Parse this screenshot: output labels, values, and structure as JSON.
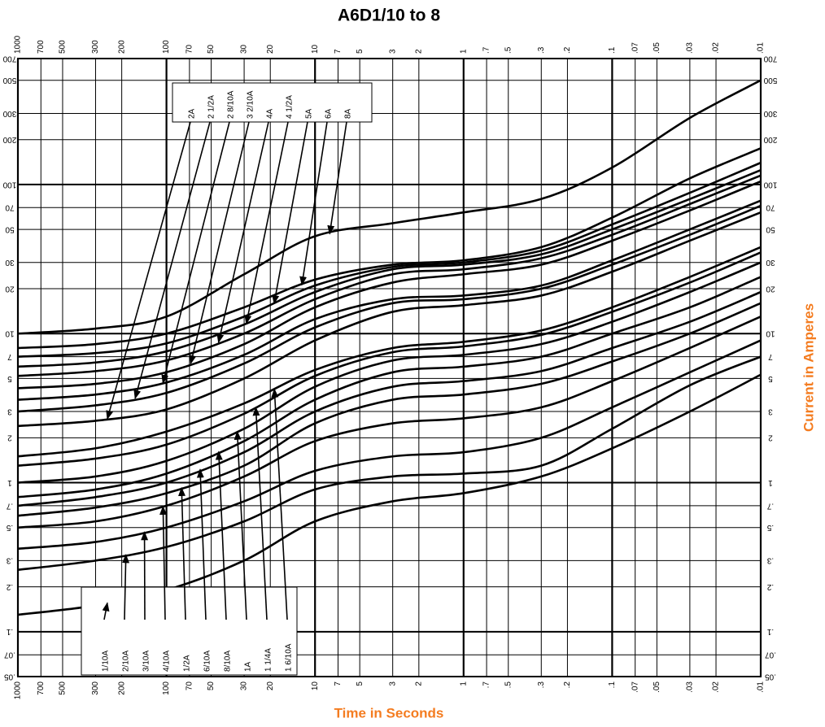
{
  "chart_data": {
    "type": "line",
    "title": "A6D1/10 to 8",
    "x_label": "Time in Seconds",
    "y_label": "Current in Amperes",
    "log_x": true,
    "log_y": true,
    "x_reversed": true,
    "grid": true,
    "color": "#000000",
    "x": [
      1000,
      300,
      100,
      30,
      10,
      3,
      1,
      0.3,
      0.1,
      0.03,
      0.01
    ],
    "xlim": [
      1000,
      0.01
    ],
    "xticks": [
      1000,
      700,
      500,
      300,
      200,
      100,
      70,
      50,
      30,
      20,
      10,
      7,
      5,
      3,
      2,
      1,
      {
        "value": 0.7,
        "label": ".7"
      },
      {
        "value": 0.5,
        "label": ".5"
      },
      {
        "value": 0.3,
        "label": ".3"
      },
      {
        "value": 0.2,
        "label": ".2"
      },
      {
        "value": 0.1,
        "label": ".1"
      },
      {
        "value": 0.07,
        "label": ".07"
      },
      {
        "value": 0.05,
        "label": ".05"
      },
      {
        "value": 0.03,
        "label": ".03"
      },
      {
        "value": 0.02,
        "label": ".02"
      },
      {
        "value": 0.01,
        "label": ".01"
      }
    ],
    "ylim": [
      0.05,
      700
    ],
    "yticks": [
      {
        "value": 0.05,
        "label": ".05"
      },
      {
        "value": 0.07,
        "label": ".07"
      },
      {
        "value": 0.1,
        "label": ".1"
      },
      {
        "value": 0.2,
        "label": ".2"
      },
      {
        "value": 0.3,
        "label": ".3"
      },
      {
        "value": 0.5,
        "label": ".5"
      },
      {
        "value": 0.7,
        "label": ".7"
      },
      1,
      2,
      3,
      5,
      7,
      10,
      20,
      30,
      50,
      70,
      100,
      200,
      300,
      500,
      700
    ],
    "series": [
      {
        "name": "1/10A",
        "values": [
          0.13,
          0.15,
          0.19,
          0.3,
          0.55,
          0.75,
          0.85,
          1.1,
          1.7,
          3,
          5.3
        ]
      },
      {
        "name": "2/10A",
        "values": [
          0.26,
          0.3,
          0.37,
          0.55,
          0.9,
          1.1,
          1.15,
          1.3,
          2.3,
          4.5,
          7
        ]
      },
      {
        "name": "3/10A",
        "values": [
          0.36,
          0.4,
          0.5,
          0.75,
          1.2,
          1.5,
          1.6,
          2,
          3.2,
          5.5,
          9
        ]
      },
      {
        "name": "4/10A",
        "values": [
          0.5,
          0.55,
          0.7,
          1.1,
          1.9,
          2.5,
          2.7,
          3.2,
          4.8,
          8,
          13
        ]
      },
      {
        "name": "1/2A",
        "values": [
          0.6,
          0.68,
          0.85,
          1.3,
          2.5,
          3.6,
          3.9,
          4.6,
          6.5,
          10,
          16
        ]
      },
      {
        "name": "6/10A",
        "values": [
          0.7,
          0.8,
          1.0,
          1.6,
          3.0,
          4.4,
          4.8,
          5.6,
          8,
          12,
          19
        ]
      },
      {
        "name": "8/10A",
        "values": [
          0.8,
          0.9,
          1.15,
          1.9,
          3.6,
          5.5,
          6,
          7,
          10,
          15,
          24
        ]
      },
      {
        "name": "1A",
        "values": [
          1.0,
          1.1,
          1.4,
          2.3,
          4.4,
          6.6,
          7.2,
          8.5,
          12,
          19,
          30
        ]
      },
      {
        "name": "1 1/4A",
        "values": [
          1.3,
          1.45,
          1.8,
          2.9,
          5.2,
          7.5,
          8.2,
          9.8,
          14,
          22,
          35
        ]
      },
      {
        "name": "1 6/10A",
        "values": [
          1.5,
          1.7,
          2.2,
          3.4,
          5.7,
          8,
          8.8,
          10.5,
          15,
          24,
          38
        ]
      },
      {
        "name": "2A",
        "values": [
          2.4,
          2.6,
          3.1,
          5,
          9,
          14,
          15.5,
          18,
          26,
          42,
          65
        ]
      },
      {
        "name": "2 1/2A",
        "values": [
          3.0,
          3.3,
          4,
          6.3,
          11,
          16,
          17,
          20,
          29,
          46,
          72
        ]
      },
      {
        "name": "2 8/10A",
        "values": [
          3.6,
          3.9,
          4.7,
          7.2,
          12.5,
          17,
          18,
          21,
          31,
          50,
          78
        ]
      },
      {
        "name": "3 2/10A",
        "values": [
          4.3,
          4.6,
          5.5,
          8.5,
          15,
          22,
          25,
          29,
          42,
          67,
          105
        ]
      },
      {
        "name": "4A",
        "values": [
          5.2,
          5.6,
          6.6,
          10,
          17,
          25,
          27,
          32,
          46,
          74,
          115
        ]
      },
      {
        "name": "4 1/2A",
        "values": [
          6,
          6.4,
          7.6,
          11.5,
          19,
          27,
          29,
          34,
          50,
          80,
          125
        ]
      },
      {
        "name": "5A",
        "values": [
          7,
          7.4,
          8.6,
          13,
          21,
          28,
          30,
          36,
          54,
          88,
          140
        ]
      },
      {
        "name": "6A",
        "values": [
          8,
          8.5,
          10,
          15,
          23,
          29,
          31,
          38,
          60,
          110,
          175
        ]
      },
      {
        "name": "8A",
        "values": [
          10,
          10.8,
          13,
          25,
          45,
          55,
          65,
          80,
          130,
          280,
          500
        ]
      }
    ]
  }
}
